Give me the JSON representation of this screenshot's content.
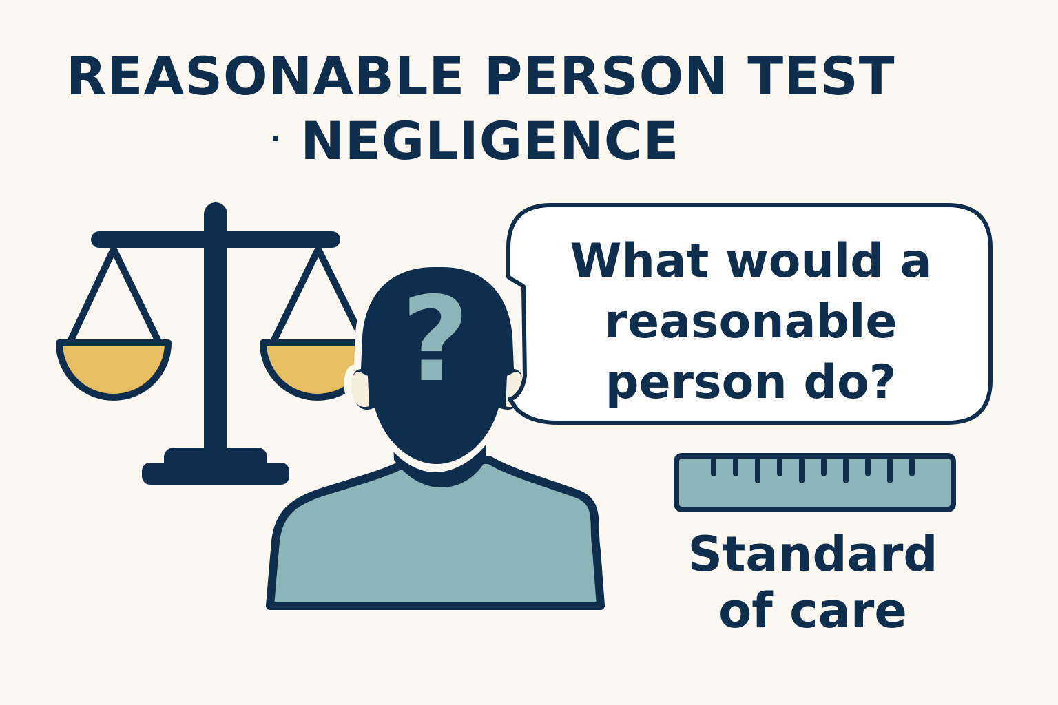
{
  "title": {
    "line1": "REASONABLE PERSON TEST",
    "bullet": "·",
    "line2": "NEGLIGENCE"
  },
  "speech_bubble": {
    "lines": [
      "What would a",
      "reasonable",
      "person do?"
    ]
  },
  "ruler_label": {
    "lines": [
      "Standard",
      "of care"
    ]
  },
  "person_head_symbol": "?",
  "icons": {
    "scales": "scales-of-justice-icon",
    "person": "person-silhouette-icon",
    "ruler": "ruler-icon"
  },
  "colors": {
    "background": "#FBF8F1",
    "navy": "#0F2D4C",
    "gold": "#E8BE62",
    "teal": "#8BB5B8"
  }
}
